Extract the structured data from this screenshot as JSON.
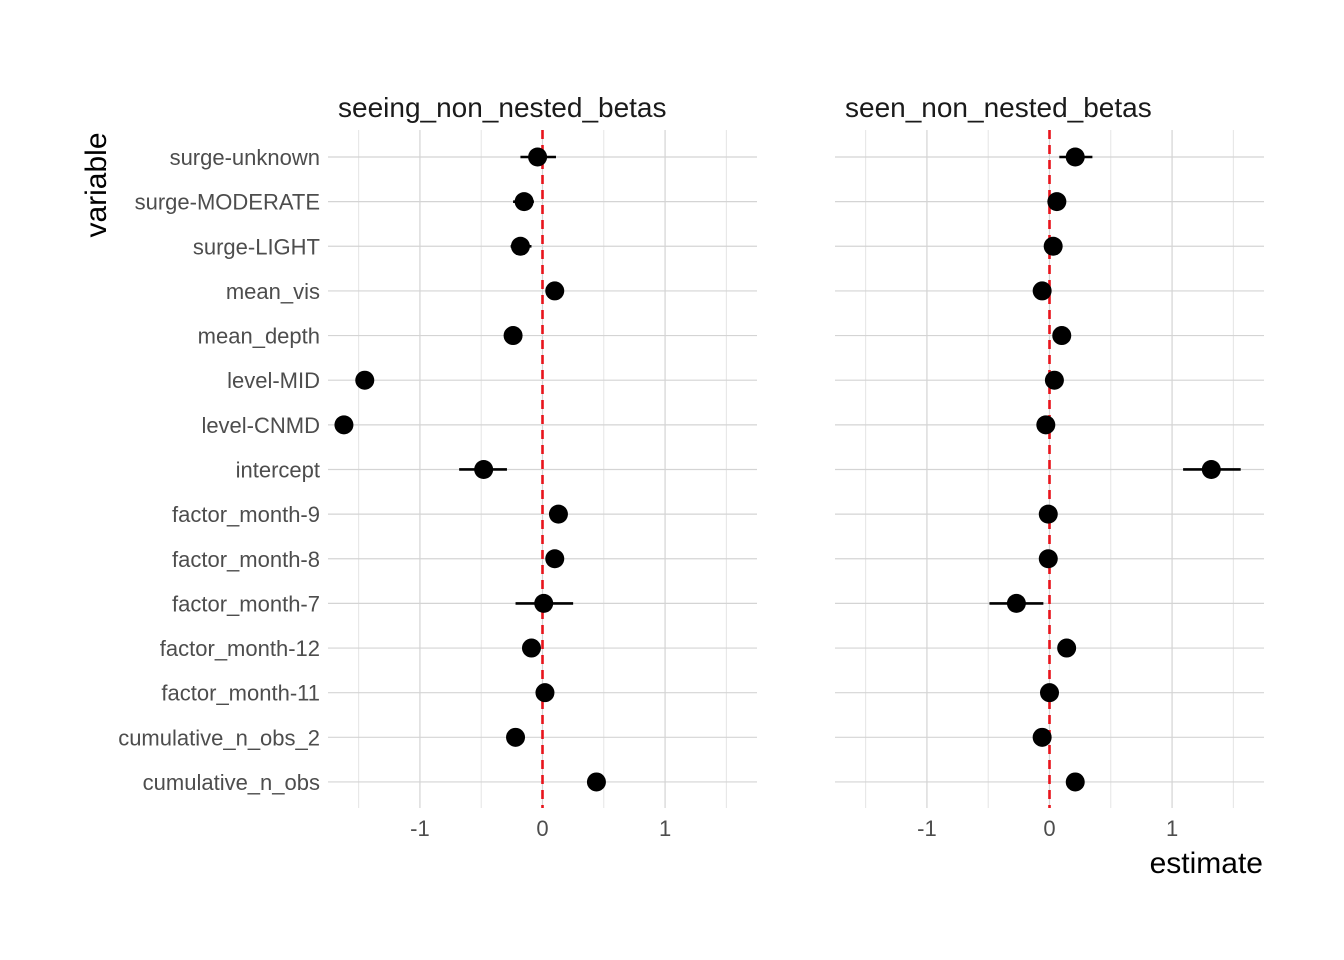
{
  "chart_data": {
    "type": "scatter",
    "xlabel": "estimate",
    "ylabel": "variable",
    "xlim": [
      -1.75,
      1.75
    ],
    "x_ticks": [
      "-1",
      "0",
      "1"
    ],
    "x_tick_values": [
      -1,
      0,
      1
    ],
    "reference_line": {
      "x": 0,
      "color": "#e8141c",
      "style": "dashed"
    },
    "grid": true,
    "variables": [
      "surge-unknown",
      "surge-MODERATE",
      "surge-LIGHT",
      "mean_vis",
      "mean_depth",
      "level-MID",
      "level-CNMD",
      "intercept",
      "factor_month-9",
      "factor_month-8",
      "factor_month-7",
      "factor_month-12",
      "factor_month-11",
      "cumulative_n_obs_2",
      "cumulative_n_obs"
    ],
    "panels": [
      {
        "title": "seeing_non_nested_betas",
        "estimates": [
          -0.04,
          -0.15,
          -0.18,
          0.1,
          -0.24,
          -1.45,
          -1.62,
          -0.48,
          0.13,
          0.1,
          0.01,
          -0.09,
          0.02,
          -0.22,
          0.44
        ],
        "lower": [
          -0.18,
          -0.24,
          -0.26,
          0.08,
          -0.26,
          -1.46,
          -1.63,
          -0.68,
          0.11,
          0.08,
          -0.22,
          -0.12,
          0.0,
          -0.25,
          0.42
        ],
        "upper": [
          0.11,
          -0.07,
          -0.09,
          0.12,
          -0.22,
          -1.44,
          -1.61,
          -0.29,
          0.15,
          0.12,
          0.25,
          -0.06,
          0.04,
          -0.19,
          0.46
        ]
      },
      {
        "title": "seen_non_nested_betas",
        "estimates": [
          0.21,
          0.06,
          0.03,
          -0.06,
          0.1,
          0.04,
          -0.03,
          1.32,
          -0.01,
          -0.01,
          -0.27,
          0.14,
          0.0,
          -0.06,
          0.21
        ],
        "lower": [
          0.08,
          0.0,
          -0.03,
          -0.08,
          0.08,
          0.02,
          -0.05,
          1.09,
          -0.03,
          -0.03,
          -0.49,
          0.12,
          -0.02,
          -0.08,
          0.19
        ],
        "upper": [
          0.35,
          0.12,
          0.09,
          -0.04,
          0.12,
          0.06,
          -0.01,
          1.56,
          0.01,
          0.01,
          -0.05,
          0.16,
          0.02,
          -0.04,
          0.23
        ]
      }
    ]
  }
}
